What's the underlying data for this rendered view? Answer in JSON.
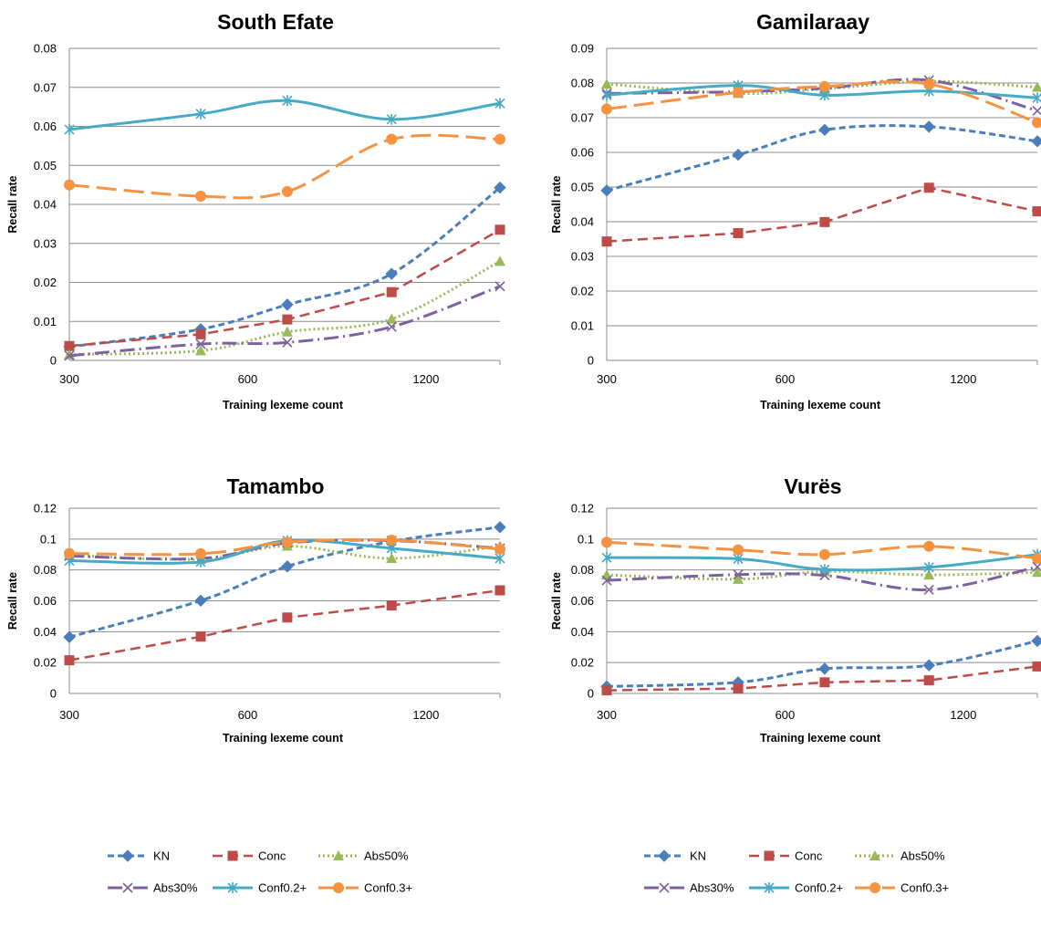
{
  "chart_data": [
    {
      "type": "line",
      "title": "South Efate",
      "xlabel": "Training lexeme count",
      "ylabel": "Recall rate",
      "x_scale": "log2",
      "x_ticks": [
        300,
        600,
        1200
      ],
      "x_tick_labels": [
        "300",
        "600",
        "1200"
      ],
      "x": [
        300,
        500,
        700,
        1050,
        1600
      ],
      "ylim": [
        0,
        0.08
      ],
      "y_ticks": [
        0,
        0.01,
        0.02,
        0.03,
        0.04,
        0.05,
        0.06,
        0.07,
        0.08
      ],
      "y_tick_labels": [
        "0",
        "0.01",
        "0.02",
        "0.03",
        "0.04",
        "0.05",
        "0.06",
        "0.07",
        "0.08"
      ],
      "grid": "horizontal",
      "series": [
        {
          "name": "KN",
          "values": [
            0.0035,
            0.008,
            0.0143,
            0.0222,
            0.0443
          ]
        },
        {
          "name": "Conc",
          "values": [
            0.0037,
            0.0067,
            0.0105,
            0.0175,
            0.0335
          ]
        },
        {
          "name": "Abs50%",
          "values": [
            0.0015,
            0.0025,
            0.0073,
            0.0106,
            0.0254
          ]
        },
        {
          "name": "Abs30%",
          "values": [
            0.0012,
            0.0042,
            0.0046,
            0.0086,
            0.019
          ]
        },
        {
          "name": "Conf0.2+",
          "values": [
            0.0592,
            0.0632,
            0.0666,
            0.0618,
            0.0659
          ]
        },
        {
          "name": "Conf0.3+",
          "values": [
            0.045,
            0.0421,
            0.0433,
            0.0567,
            0.0567
          ]
        }
      ]
    },
    {
      "type": "line",
      "title": "Gamilaraay",
      "xlabel": "Training lexeme count",
      "ylabel": "Recall rate",
      "x_scale": "log2",
      "x_ticks": [
        300,
        600,
        1200
      ],
      "x_tick_labels": [
        "300",
        "600",
        "1200"
      ],
      "x": [
        300,
        500,
        700,
        1050,
        1600
      ],
      "ylim": [
        0,
        0.09
      ],
      "y_ticks": [
        0,
        0.01,
        0.02,
        0.03,
        0.04,
        0.05,
        0.06,
        0.07,
        0.08,
        0.09
      ],
      "y_tick_labels": [
        "0",
        "0.01",
        "0.02",
        "0.03",
        "0.04",
        "0.05",
        "0.06",
        "0.07",
        "0.08",
        "0.09"
      ],
      "grid": "horizontal",
      "series": [
        {
          "name": "KN",
          "values": [
            0.049,
            0.0593,
            0.0665,
            0.0674,
            0.0632
          ]
        },
        {
          "name": "Conc",
          "values": [
            0.0343,
            0.0367,
            0.0399,
            0.0498,
            0.043
          ]
        },
        {
          "name": "Abs50%",
          "values": [
            0.0797,
            0.077,
            0.0783,
            0.0805,
            0.0788
          ]
        },
        {
          "name": "Abs30%",
          "values": [
            0.077,
            0.0775,
            0.0785,
            0.0808,
            0.072
          ]
        },
        {
          "name": "Conf0.2+",
          "values": [
            0.0765,
            0.0793,
            0.0765,
            0.0777,
            0.0757
          ]
        },
        {
          "name": "Conf0.3+",
          "values": [
            0.0725,
            0.0773,
            0.079,
            0.0797,
            0.0686
          ]
        }
      ]
    },
    {
      "type": "line",
      "title": "Tamambo",
      "xlabel": "Training lexeme count",
      "ylabel": "Recall rate",
      "x_scale": "log2",
      "x_ticks": [
        300,
        600,
        1200
      ],
      "x_tick_labels": [
        "300",
        "600",
        "1200"
      ],
      "x": [
        300,
        500,
        700,
        1050,
        1600
      ],
      "ylim": [
        0,
        0.12
      ],
      "y_ticks": [
        0,
        0.02,
        0.04,
        0.06,
        0.08,
        0.1,
        0.12
      ],
      "y_tick_labels": [
        "0",
        "0.02",
        "0.04",
        "0.06",
        "0.08",
        "0.1",
        "0.12"
      ],
      "grid": "horizontal",
      "series": [
        {
          "name": "KN",
          "values": [
            0.0365,
            0.0601,
            0.0823,
            0.0985,
            0.1077
          ]
        },
        {
          "name": "Conc",
          "values": [
            0.0215,
            0.0368,
            0.0492,
            0.057,
            0.0668
          ]
        },
        {
          "name": "Abs50%",
          "values": [
            0.0895,
            0.087,
            0.0955,
            0.0875,
            0.0955
          ]
        },
        {
          "name": "Abs30%",
          "values": [
            0.089,
            0.0875,
            0.0975,
            0.099,
            0.094
          ]
        },
        {
          "name": "Conf0.2+",
          "values": [
            0.086,
            0.0852,
            0.099,
            0.094,
            0.0875
          ]
        },
        {
          "name": "Conf0.3+",
          "values": [
            0.0907,
            0.0905,
            0.098,
            0.0993,
            0.0935
          ]
        }
      ]
    },
    {
      "type": "line",
      "title": "Vurës",
      "xlabel": "Training lexeme count",
      "ylabel": "Recall rate",
      "x_scale": "log2",
      "x_ticks": [
        300,
        600,
        1200
      ],
      "x_tick_labels": [
        "300",
        "600",
        "1200"
      ],
      "x": [
        300,
        500,
        700,
        1050,
        1600
      ],
      "ylim": [
        0,
        0.12
      ],
      "y_ticks": [
        0,
        0.02,
        0.04,
        0.06,
        0.08,
        0.1,
        0.12
      ],
      "y_tick_labels": [
        "0",
        "0.02",
        "0.04",
        "0.06",
        "0.08",
        "0.1",
        "0.12"
      ],
      "grid": "horizontal",
      "series": [
        {
          "name": "KN",
          "values": [
            0.0045,
            0.0072,
            0.016,
            0.0182,
            0.034
          ]
        },
        {
          "name": "Conc",
          "values": [
            0.002,
            0.0032,
            0.0072,
            0.0085,
            0.0175
          ]
        },
        {
          "name": "Abs50%",
          "values": [
            0.0768,
            0.074,
            0.079,
            0.0768,
            0.0785
          ]
        },
        {
          "name": "Abs30%",
          "values": [
            0.0732,
            0.077,
            0.0765,
            0.0672,
            0.082
          ]
        },
        {
          "name": "Conf0.2+",
          "values": [
            0.088,
            0.0872,
            0.0803,
            0.0817,
            0.09
          ]
        },
        {
          "name": "Conf0.3+",
          "values": [
            0.098,
            0.093,
            0.09,
            0.0953,
            0.0875
          ]
        }
      ]
    }
  ],
  "legend_rows": [
    [
      {
        "name": "KN",
        "label": "KN"
      },
      {
        "name": "Conc",
        "label": "Conc"
      },
      {
        "name": "Abs50%",
        "label": "Abs50%"
      }
    ],
    [
      {
        "name": "Abs30%",
        "label": "Abs30%"
      },
      {
        "name": "Conf0.2+",
        "label": "Conf0.2+"
      },
      {
        "name": "Conf0.3+",
        "label": "Conf0.3+"
      }
    ]
  ],
  "series_styles": {
    "KN": {
      "color": "#4A7EBB",
      "dash": "7,4",
      "marker": "diamond",
      "width": 3,
      "curved": true
    },
    "Conc": {
      "color": "#BE4B48",
      "dash": "11,6",
      "marker": "square",
      "width": 2.5,
      "curved": false
    },
    "Abs50%": {
      "color": "#98B954",
      "dash": "2,3",
      "marker": "triangle",
      "width": 3,
      "curved": true
    },
    "Abs30%": {
      "color": "#7D60A0",
      "dash": "16,5,2,5",
      "marker": "x",
      "width": 3,
      "curved": true
    },
    "Conf0.2+": {
      "color": "#46AAC5",
      "dash": "",
      "marker": "asterisk",
      "width": 3,
      "curved": true
    },
    "Conf0.3+": {
      "color": "#F69240",
      "dash": "22,8",
      "marker": "circle",
      "width": 3,
      "curved": true
    }
  }
}
